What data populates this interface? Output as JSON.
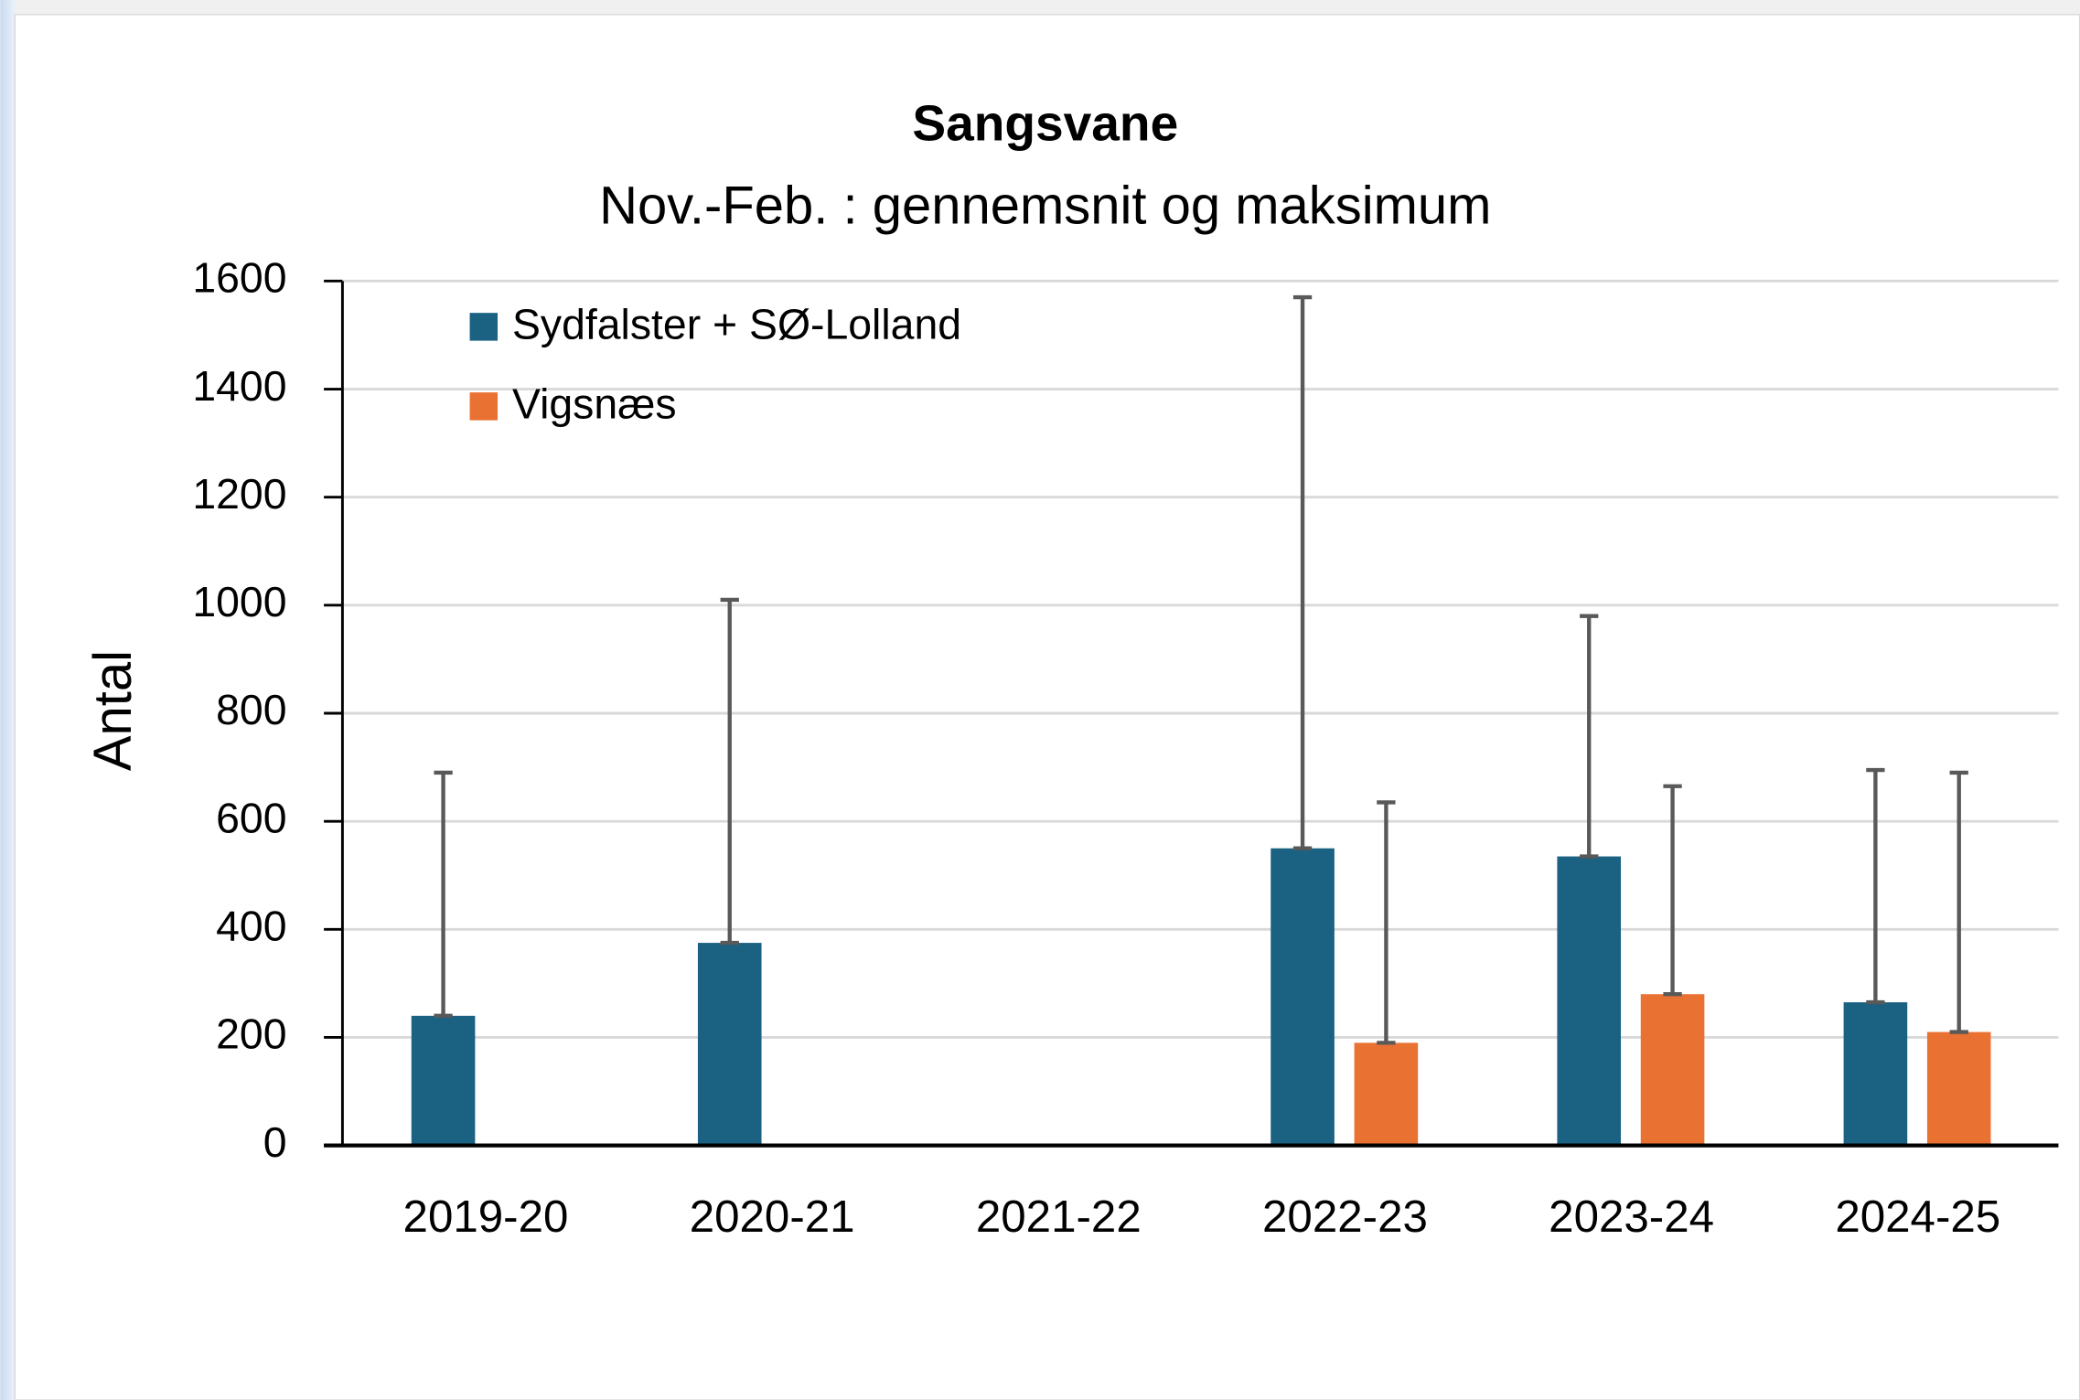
{
  "chart_data": {
    "type": "bar",
    "title": "Sangsvane",
    "subtitle": "Nov.-Feb. : gennemsnit og maksimum",
    "y_label": "Antal",
    "categories": [
      "2019-20",
      "2020-21",
      "2021-22",
      "2022-23",
      "2023-24",
      "2024-25"
    ],
    "series": [
      {
        "name": "Sydfalster + SØ-Lolland",
        "color": "#1a6182",
        "values": [
          240,
          375,
          null,
          550,
          535,
          265
        ],
        "max": [
          690,
          1010,
          null,
          1570,
          980,
          695
        ]
      },
      {
        "name": "Vigsnæs",
        "color": "#e97132",
        "values": [
          null,
          null,
          null,
          190,
          280,
          210
        ],
        "max": [
          null,
          null,
          null,
          635,
          665,
          690
        ]
      }
    ],
    "ylim": [
      0,
      1600
    ],
    "yticks": [
      0,
      200,
      400,
      600,
      800,
      1000,
      1200,
      1400,
      1600
    ],
    "grid": true,
    "legend": "upper left"
  }
}
